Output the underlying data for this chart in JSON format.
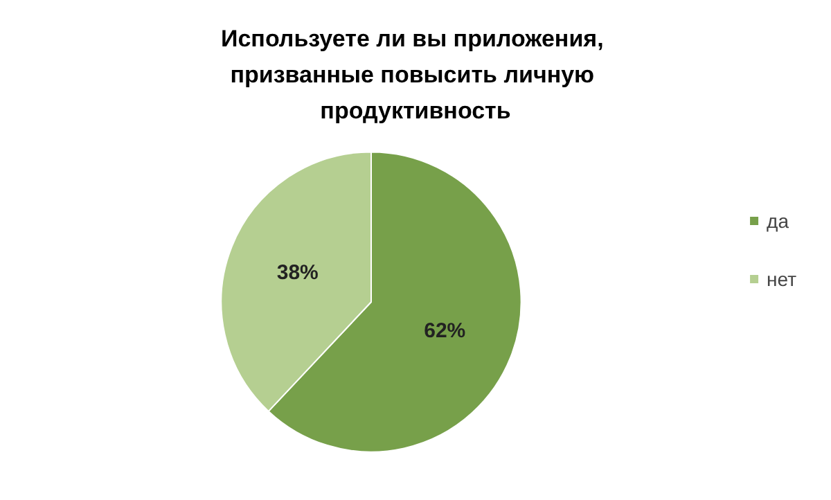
{
  "chart_data": {
    "type": "pie",
    "title": "Используете ли вы приложения, призванные повысить личную продуктивность",
    "categories": [
      "да",
      "нет"
    ],
    "values": [
      62,
      38
    ],
    "colors": [
      "#77a04a",
      "#b5cf91"
    ],
    "value_labels": [
      "62%",
      "38%"
    ],
    "legend": "right"
  }
}
